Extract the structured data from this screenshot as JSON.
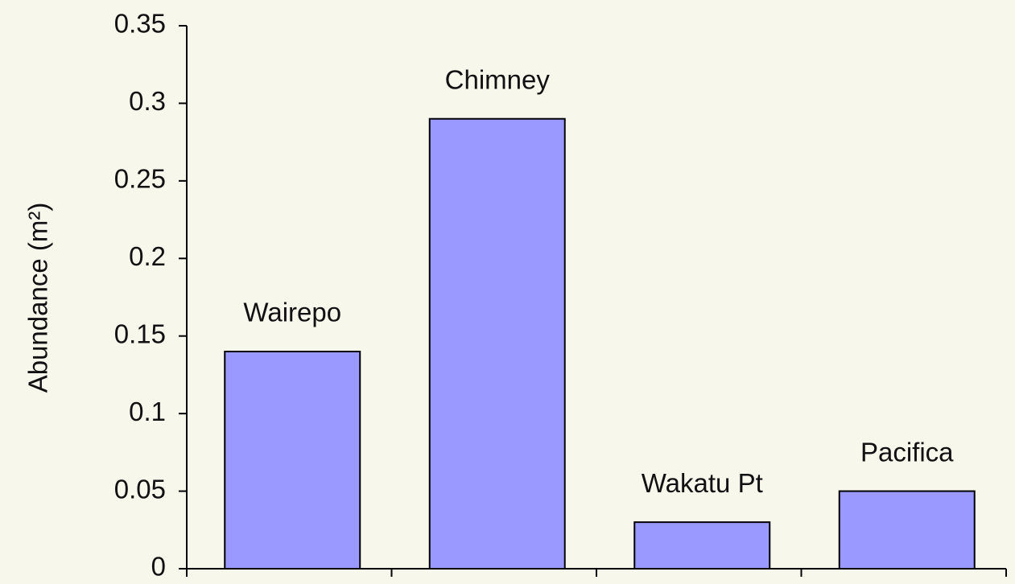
{
  "chart_data": {
    "type": "bar",
    "y_label": "Abundance (m²)",
    "categories": [
      "Wairepo",
      "Chimney",
      "Wakatu Pt",
      "Pacifica"
    ],
    "values": [
      0.14,
      0.29,
      0.03,
      0.05
    ],
    "color": "#9999ff",
    "ylim": [
      0,
      0.35
    ],
    "yticks": [
      0,
      0.05,
      0.1,
      0.15,
      0.2,
      0.25,
      0.3,
      0.35
    ],
    "grid": false
  }
}
